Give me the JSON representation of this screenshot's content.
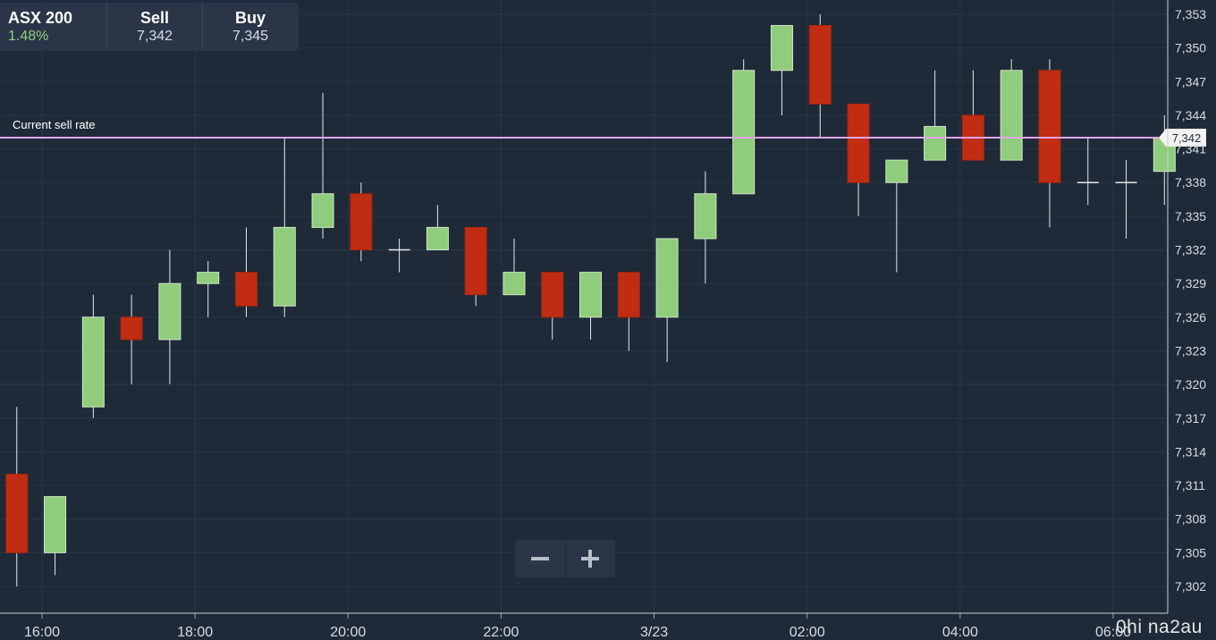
{
  "quote": {
    "symbol": "ASX 200",
    "change": "1.48%",
    "sell_label": "Sell",
    "sell_value": "7,342",
    "buy_label": "Buy",
    "buy_value": "7,345"
  },
  "zoom": {
    "out_icon": "minus-icon",
    "in_icon": "plus-icon"
  },
  "watermark": "0hi na2au",
  "colors": {
    "background": "#1f2a38",
    "up": "#8fcc7c",
    "down": "#c12d12",
    "current_line": "#e3a6e8",
    "grid": "#2b3646"
  },
  "chart_data": {
    "type": "candlestick",
    "y_ticks": [
      "7,302",
      "7,305",
      "7,308",
      "7,311",
      "7,314",
      "7,317",
      "7,320",
      "7,323",
      "7,326",
      "7,329",
      "7,332",
      "7,335",
      "7,338",
      "7,341",
      "7,344",
      "7,347",
      "7,350",
      "7,353"
    ],
    "ylim": [
      7300.5,
      7354.5
    ],
    "x_ticks": [
      {
        "label": "16:00",
        "x": 16.0
      },
      {
        "label": "18:00",
        "x": 18.0
      },
      {
        "label": "20:00",
        "x": 20.0
      },
      {
        "label": "22:00",
        "x": 22.0
      },
      {
        "label": "3/23",
        "x": 24.0
      },
      {
        "label": "02:00",
        "x": 26.0
      },
      {
        "label": "04:00",
        "x": 28.0
      },
      {
        "label": "06:00",
        "x": 30.0
      }
    ],
    "xlim": [
      15.7,
      31.05
    ],
    "current_line": {
      "label": "Current sell rate",
      "value": 7342,
      "value_label": "7,342"
    },
    "candles": [
      {
        "t": 15.67,
        "o": 7312,
        "h": 7318,
        "l": 7302,
        "c": 7305
      },
      {
        "t": 16.17,
        "o": 7305,
        "h": 7310,
        "l": 7303,
        "c": 7310
      },
      {
        "t": 16.67,
        "o": 7318,
        "h": 7328,
        "l": 7317,
        "c": 7326
      },
      {
        "t": 17.17,
        "o": 7326,
        "h": 7328,
        "l": 7320,
        "c": 7324
      },
      {
        "t": 17.67,
        "o": 7324,
        "h": 7332,
        "l": 7320,
        "c": 7329
      },
      {
        "t": 18.17,
        "o": 7329,
        "h": 7331,
        "l": 7326,
        "c": 7330
      },
      {
        "t": 18.67,
        "o": 7330,
        "h": 7334,
        "l": 7326,
        "c": 7327
      },
      {
        "t": 19.17,
        "o": 7327,
        "h": 7342,
        "l": 7326,
        "c": 7334
      },
      {
        "t": 19.67,
        "o": 7334,
        "h": 7346,
        "l": 7333,
        "c": 7337
      },
      {
        "t": 20.17,
        "o": 7337,
        "h": 7338,
        "l": 7331,
        "c": 7332
      },
      {
        "t": 20.67,
        "o": 7332,
        "h": 7333,
        "l": 7330,
        "c": 7332
      },
      {
        "t": 21.17,
        "o": 7332,
        "h": 7336,
        "l": 7332,
        "c": 7334
      },
      {
        "t": 21.67,
        "o": 7334,
        "h": 7334,
        "l": 7327,
        "c": 7328
      },
      {
        "t": 22.17,
        "o": 7328,
        "h": 7333,
        "l": 7328,
        "c": 7330
      },
      {
        "t": 22.67,
        "o": 7330,
        "h": 7330,
        "l": 7324,
        "c": 7326
      },
      {
        "t": 23.17,
        "o": 7326,
        "h": 7330,
        "l": 7324,
        "c": 7330
      },
      {
        "t": 23.67,
        "o": 7330,
        "h": 7330,
        "l": 7323,
        "c": 7326
      },
      {
        "t": 24.17,
        "o": 7326,
        "h": 7333,
        "l": 7322,
        "c": 7333
      },
      {
        "t": 24.67,
        "o": 7333,
        "h": 7339,
        "l": 7329,
        "c": 7337
      },
      {
        "t": 25.17,
        "o": 7337,
        "h": 7349,
        "l": 7337,
        "c": 7348
      },
      {
        "t": 25.67,
        "o": 7348,
        "h": 7352,
        "l": 7344,
        "c": 7352
      },
      {
        "t": 26.17,
        "o": 7352,
        "h": 7353,
        "l": 7342,
        "c": 7345
      },
      {
        "t": 26.67,
        "o": 7345,
        "h": 7345,
        "l": 7335,
        "c": 7338
      },
      {
        "t": 27.17,
        "o": 7338,
        "h": 7340,
        "l": 7330,
        "c": 7340
      },
      {
        "t": 27.67,
        "o": 7340,
        "h": 7348,
        "l": 7340,
        "c": 7343
      },
      {
        "t": 28.17,
        "o": 7344,
        "h": 7348,
        "l": 7340,
        "c": 7340
      },
      {
        "t": 28.67,
        "o": 7340,
        "h": 7349,
        "l": 7340,
        "c": 7348
      },
      {
        "t": 29.17,
        "o": 7348,
        "h": 7349,
        "l": 7334,
        "c": 7338
      },
      {
        "t": 29.67,
        "o": 7338,
        "h": 7342,
        "l": 7336,
        "c": 7338
      },
      {
        "t": 30.17,
        "o": 7338,
        "h": 7340,
        "l": 7333,
        "c": 7338
      },
      {
        "t": 30.67,
        "o": 7339,
        "h": 7344,
        "l": 7336,
        "c": 7342
      }
    ]
  }
}
